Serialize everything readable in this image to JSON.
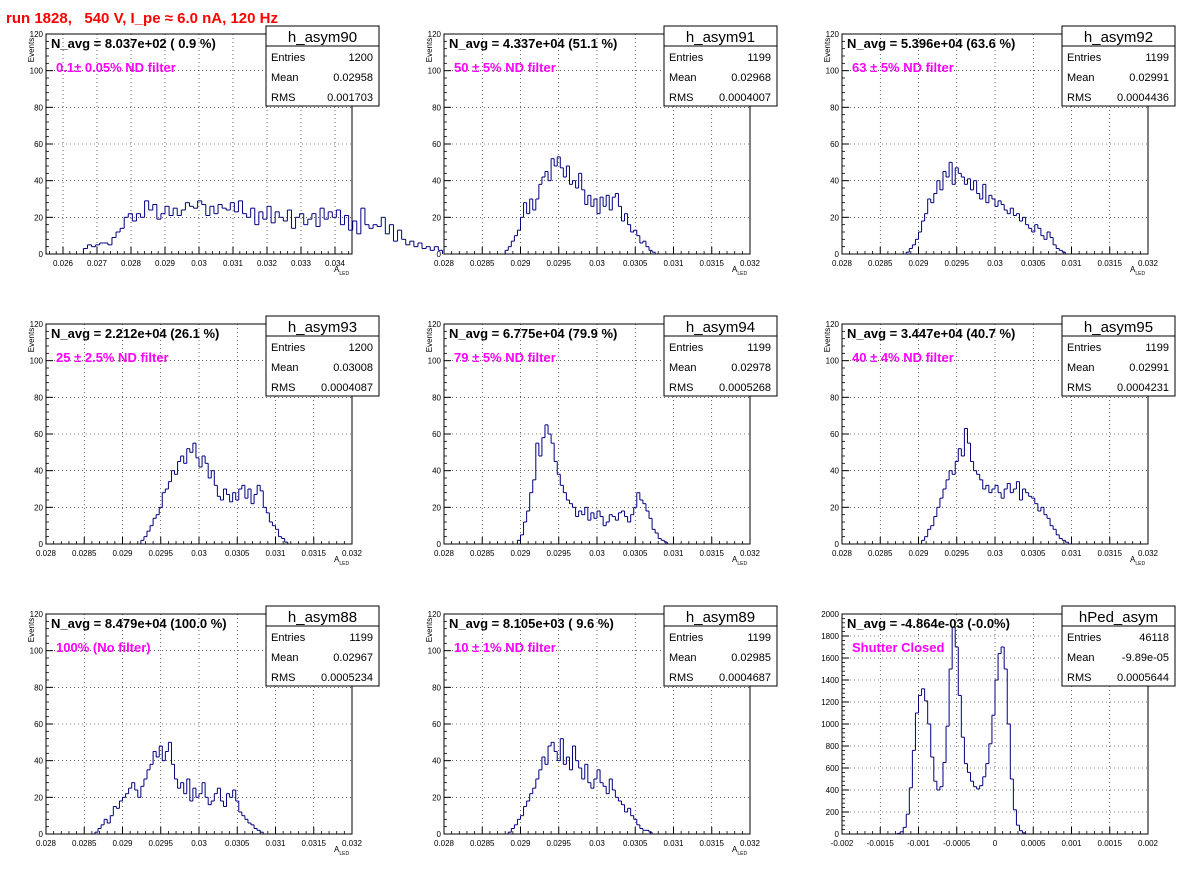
{
  "page_title": "run 1828,   540 V, I_pe ≈ 6.0 nA, 120 Hz",
  "colors": {
    "line": "#000080",
    "title_red": "#ff0000",
    "note_magenta": "#ff00ff",
    "grid": "#000000"
  },
  "chart_data": [
    {
      "type": "histogram",
      "name": "h_asym90",
      "header": "N_avg = 8.037e+02 ( 0.9 %)",
      "note": "0.1± 0.05% ND filter",
      "stats": {
        "entries": "1200",
        "mean": "0.02958",
        "rms": "0.001703"
      },
      "stat_labels": [
        "Entries",
        "Mean",
        "RMS"
      ],
      "xlabel": "A",
      "xlabel_sub": "LED",
      "ylabel": "Events",
      "xlim": [
        0.0255,
        0.0345
      ],
      "ylim": [
        0,
        120
      ],
      "xticks": [
        0.026,
        0.027,
        0.028,
        0.029,
        0.03,
        0.031,
        0.032,
        0.033,
        0.034
      ],
      "xtick_labels": [
        "0.026",
        "0.027",
        "0.028",
        "0.029",
        "0.03",
        "0.031",
        "0.032",
        "0.033",
        "0.034"
      ],
      "yticks": [
        0,
        20,
        40,
        60,
        80,
        100,
        120
      ],
      "ytick_labels": [
        "0",
        "20",
        "40",
        "60",
        "80",
        "100",
        "120"
      ],
      "bins": {
        "start": 0.0266,
        "width": 0.00012,
        "values": [
          3,
          5,
          4,
          5,
          6,
          6,
          5,
          9,
          12,
          14,
          20,
          22,
          18,
          22,
          20,
          29,
          24,
          27,
          19,
          22,
          26,
          21,
          25,
          21,
          24,
          28,
          26,
          25,
          29,
          27,
          21,
          26,
          22,
          27,
          25,
          24,
          28,
          23,
          29,
          22,
          20,
          25,
          16,
          23,
          19,
          26,
          17,
          23,
          20,
          18,
          24,
          14,
          20,
          22,
          16,
          19,
          22,
          15,
          25,
          19,
          23,
          20,
          24,
          16,
          21,
          13,
          18,
          11,
          25,
          16,
          14,
          16,
          15,
          20,
          11,
          16,
          7,
          13,
          8,
          5,
          7,
          4,
          6,
          3,
          4,
          2,
          4,
          2
        ]
      }
    },
    {
      "type": "histogram",
      "name": "h_asym91",
      "header": "N_avg = 4.337e+04 (51.1 %)",
      "note": "50 ± 5% ND filter",
      "stats": {
        "entries": "1199",
        "mean": "0.02968",
        "rms": "0.0004007"
      },
      "stat_labels": [
        "Entries",
        "Mean",
        "RMS"
      ],
      "xlabel": "A",
      "xlabel_sub": "LED",
      "ylabel": "Events",
      "xlim": [
        0.028,
        0.032
      ],
      "ylim": [
        0,
        120
      ],
      "xticks": [
        0.028,
        0.0285,
        0.029,
        0.0295,
        0.03,
        0.0305,
        0.031,
        0.0315,
        0.032
      ],
      "xtick_labels": [
        "0.028",
        "0.0285",
        "0.029",
        "0.0295",
        "0.03",
        "0.0305",
        "0.031",
        "0.0315",
        "0.032"
      ],
      "yticks": [
        0,
        20,
        40,
        60,
        80,
        100,
        120
      ],
      "ytick_labels": [
        "0",
        "20",
        "40",
        "60",
        "80",
        "100",
        "120"
      ],
      "bins": {
        "start": 0.0288,
        "width": 4e-05,
        "values": [
          2,
          4,
          7,
          10,
          13,
          20,
          28,
          22,
          30,
          24,
          30,
          38,
          42,
          45,
          40,
          52,
          48,
          53,
          47,
          42,
          48,
          38,
          40,
          36,
          44,
          35,
          27,
          32,
          26,
          30,
          22,
          31,
          26,
          32,
          24,
          31,
          33,
          26,
          18,
          22,
          16,
          12,
          13,
          10,
          6,
          7,
          4,
          2,
          1
        ]
      }
    },
    {
      "type": "histogram",
      "name": "h_asym92",
      "header": "N_avg = 5.396e+04 (63.6 %)",
      "note": "63 ± 5% ND filter",
      "stats": {
        "entries": "1199",
        "mean": "0.02991",
        "rms": "0.0004436"
      },
      "stat_labels": [
        "Entries",
        "Mean",
        "RMS"
      ],
      "xlabel": "A",
      "xlabel_sub": "LED",
      "ylabel": "Events",
      "xlim": [
        0.028,
        0.032
      ],
      "ylim": [
        0,
        120
      ],
      "xticks": [
        0.028,
        0.0285,
        0.029,
        0.0295,
        0.03,
        0.0305,
        0.031,
        0.0315,
        0.032
      ],
      "xtick_labels": [
        "0.028",
        "0.0285",
        "0.029",
        "0.0295",
        "0.03",
        "0.0305",
        "0.031",
        "0.0315",
        "0.032"
      ],
      "yticks": [
        0,
        20,
        40,
        60,
        80,
        100,
        120
      ],
      "ytick_labels": [
        "0",
        "20",
        "40",
        "60",
        "80",
        "100",
        "120"
      ],
      "bins": {
        "start": 0.02884,
        "width": 4e-05,
        "values": [
          1,
          3,
          5,
          8,
          12,
          18,
          22,
          30,
          28,
          33,
          40,
          35,
          45,
          42,
          50,
          38,
          47,
          44,
          42,
          38,
          41,
          35,
          40,
          33,
          30,
          38,
          28,
          32,
          30,
          26,
          29,
          27,
          24,
          22,
          25,
          21,
          22,
          18,
          20,
          16,
          14,
          12,
          16,
          14,
          10,
          8,
          12,
          9,
          5,
          3,
          2,
          1
        ]
      }
    },
    {
      "type": "histogram",
      "name": "h_asym93",
      "header": "N_avg = 2.212e+04 (26.1 %)",
      "note": "25 ± 2.5% ND filter",
      "stats": {
        "entries": "1200",
        "mean": "0.03008",
        "rms": "0.0004087"
      },
      "stat_labels": [
        "Entries",
        "Mean",
        "RMS"
      ],
      "xlabel": "A",
      "xlabel_sub": "LED",
      "ylabel": "Events",
      "xlim": [
        0.028,
        0.032
      ],
      "ylim": [
        0,
        120
      ],
      "xticks": [
        0.028,
        0.0285,
        0.029,
        0.0295,
        0.03,
        0.0305,
        0.031,
        0.0315,
        0.032
      ],
      "xtick_labels": [
        "0.028",
        "0.0285",
        "0.029",
        "0.0295",
        "0.03",
        "0.0305",
        "0.031",
        "0.0315",
        "0.032"
      ],
      "yticks": [
        0,
        20,
        40,
        60,
        80,
        100,
        120
      ],
      "ytick_labels": [
        "0",
        "20",
        "40",
        "60",
        "80",
        "100",
        "120"
      ],
      "bins": {
        "start": 0.02924,
        "width": 4e-05,
        "values": [
          2,
          4,
          7,
          10,
          14,
          16,
          20,
          28,
          30,
          34,
          40,
          38,
          45,
          48,
          44,
          52,
          50,
          55,
          47,
          42,
          48,
          44,
          36,
          40,
          32,
          26,
          24,
          30,
          27,
          23,
          28,
          24,
          30,
          32,
          25,
          30,
          22,
          27,
          32,
          29,
          20,
          17,
          12,
          10,
          8,
          4,
          3,
          1
        ]
      }
    },
    {
      "type": "histogram",
      "name": "h_asym94",
      "header": "N_avg = 6.775e+04 (79.9 %)",
      "note": "79 ± 5% ND filter",
      "stats": {
        "entries": "1199",
        "mean": "0.02978",
        "rms": "0.0005268"
      },
      "stat_labels": [
        "Entries",
        "Mean",
        "RMS"
      ],
      "xlabel": "A",
      "xlabel_sub": "LED",
      "ylabel": "Events",
      "xlim": [
        0.028,
        0.032
      ],
      "ylim": [
        0,
        120
      ],
      "xticks": [
        0.028,
        0.0285,
        0.029,
        0.0295,
        0.03,
        0.0305,
        0.031,
        0.0315,
        0.032
      ],
      "xtick_labels": [
        "0.028",
        "0.0285",
        "0.029",
        "0.0295",
        "0.03",
        "0.0305",
        "0.031",
        "0.0315",
        "0.032"
      ],
      "yticks": [
        0,
        20,
        40,
        60,
        80,
        100,
        120
      ],
      "ytick_labels": [
        "0",
        "20",
        "40",
        "60",
        "80",
        "100",
        "120"
      ],
      "bins": {
        "start": 0.02896,
        "width": 4e-05,
        "values": [
          2,
          5,
          12,
          18,
          28,
          35,
          55,
          48,
          58,
          65,
          60,
          55,
          45,
          38,
          32,
          28,
          24,
          22,
          20,
          15,
          18,
          16,
          20,
          13,
          17,
          14,
          18,
          15,
          10,
          12,
          16,
          15,
          13,
          17,
          18,
          15,
          12,
          16,
          20,
          28,
          24,
          22,
          18,
          14,
          8,
          6,
          3,
          2,
          1
        ]
      }
    },
    {
      "type": "histogram",
      "name": "h_asym95",
      "header": "N_avg = 3.447e+04 (40.7 %)",
      "note": "40 ± 4% ND filter",
      "stats": {
        "entries": "1199",
        "mean": "0.02991",
        "rms": "0.0004231"
      },
      "stat_labels": [
        "Entries",
        "Mean",
        "RMS"
      ],
      "xlabel": "A",
      "xlabel_sub": "LED",
      "ylabel": "Events",
      "xlim": [
        0.028,
        0.032
      ],
      "ylim": [
        0,
        120
      ],
      "xticks": [
        0.028,
        0.0285,
        0.029,
        0.0295,
        0.03,
        0.0305,
        0.031,
        0.0315,
        0.032
      ],
      "xtick_labels": [
        "0.028",
        "0.0285",
        "0.029",
        "0.0295",
        "0.03",
        "0.0305",
        "0.031",
        "0.0315",
        "0.032"
      ],
      "yticks": [
        0,
        20,
        40,
        60,
        80,
        100,
        120
      ],
      "ytick_labels": [
        "0",
        "20",
        "40",
        "60",
        "80",
        "100",
        "120"
      ],
      "bins": {
        "start": 0.02904,
        "width": 4e-05,
        "values": [
          2,
          4,
          8,
          10,
          15,
          20,
          25,
          30,
          35,
          40,
          38,
          45,
          52,
          48,
          63,
          55,
          45,
          40,
          38,
          35,
          30,
          32,
          28,
          30,
          32,
          28,
          25,
          30,
          33,
          28,
          30,
          34,
          24,
          30,
          28,
          26,
          25,
          22,
          18,
          20,
          16,
          14,
          10,
          8,
          5,
          3,
          2,
          1
        ]
      }
    },
    {
      "type": "histogram",
      "name": "h_asym88",
      "header": "N_avg = 8.479e+04 (100.0 %)",
      "note": "100% (No filter)",
      "stats": {
        "entries": "1199",
        "mean": "0.02967",
        "rms": "0.0005234"
      },
      "stat_labels": [
        "Entries",
        "Mean",
        "RMS"
      ],
      "xlabel": "A",
      "xlabel_sub": "LED",
      "ylabel": "Events",
      "xlim": [
        0.028,
        0.032
      ],
      "ylim": [
        0,
        120
      ],
      "xticks": [
        0.028,
        0.0285,
        0.029,
        0.0295,
        0.03,
        0.0305,
        0.031,
        0.0315,
        0.032
      ],
      "xtick_labels": [
        "0.028",
        "0.0285",
        "0.029",
        "0.0295",
        "0.03",
        "0.0305",
        "0.031",
        "0.0315",
        "0.032"
      ],
      "yticks": [
        0,
        20,
        40,
        60,
        80,
        100,
        120
      ],
      "ytick_labels": [
        "0",
        "20",
        "40",
        "60",
        "80",
        "100",
        "120"
      ],
      "bins": {
        "start": 0.02864,
        "width": 4e-05,
        "values": [
          1,
          3,
          5,
          8,
          6,
          10,
          15,
          14,
          18,
          20,
          22,
          25,
          28,
          24,
          20,
          26,
          30,
          35,
          38,
          45,
          42,
          48,
          40,
          45,
          50,
          38,
          30,
          25,
          28,
          22,
          30,
          18,
          25,
          20,
          22,
          28,
          20,
          16,
          18,
          22,
          25,
          18,
          15,
          22,
          20,
          24,
          18,
          12,
          10,
          8,
          6,
          5,
          3,
          2,
          1
        ]
      }
    },
    {
      "type": "histogram",
      "name": "h_asym89",
      "header": "N_avg = 8.105e+03 ( 9.6 %)",
      "note": "10 ± 1% ND filter",
      "stats": {
        "entries": "1199",
        "mean": "0.02985",
        "rms": "0.0004687"
      },
      "stat_labels": [
        "Entries",
        "Mean",
        "RMS"
      ],
      "xlabel": "A",
      "xlabel_sub": "LED",
      "ylabel": "Events",
      "xlim": [
        0.028,
        0.032
      ],
      "ylim": [
        0,
        120
      ],
      "xticks": [
        0.028,
        0.0285,
        0.029,
        0.0295,
        0.03,
        0.0305,
        0.031,
        0.0315,
        0.032
      ],
      "xtick_labels": [
        "0.028",
        "0.0285",
        "0.029",
        "0.0295",
        "0.03",
        "0.0305",
        "0.031",
        "0.0315",
        "0.032"
      ],
      "yticks": [
        0,
        20,
        40,
        60,
        80,
        100,
        120
      ],
      "ytick_labels": [
        "0",
        "20",
        "40",
        "60",
        "80",
        "100",
        "120"
      ],
      "bins": {
        "start": 0.02884,
        "width": 4e-05,
        "values": [
          1,
          3,
          5,
          8,
          10,
          15,
          18,
          22,
          25,
          30,
          35,
          42,
          38,
          48,
          50,
          45,
          40,
          52,
          38,
          42,
          35,
          48,
          40,
          36,
          30,
          38,
          28,
          25,
          30,
          35,
          28,
          26,
          22,
          30,
          24,
          20,
          18,
          16,
          12,
          14,
          10,
          8,
          5,
          3,
          2,
          2,
          1
        ]
      }
    },
    {
      "type": "histogram",
      "name": "hPed_asym",
      "header": "N_avg = -4.864e-03 (-0.0%)",
      "note": "Shutter Closed",
      "stats": {
        "entries": "46118",
        "mean": "-9.89e-05",
        "rms": "0.0005644"
      },
      "stat_labels": [
        "Entries",
        "Mean",
        "RMS"
      ],
      "xlabel": "",
      "xlabel_sub": "",
      "ylabel": "",
      "xlim": [
        -0.002,
        0.002
      ],
      "ylim": [
        0,
        2000
      ],
      "xticks": [
        -0.002,
        -0.0015,
        -0.001,
        -0.0005,
        0,
        0.0005,
        0.001,
        0.0015,
        0.002
      ],
      "xtick_labels": [
        "-0.002",
        "-0.0015",
        "-0.001",
        "-0.0005",
        "0",
        "0.0005",
        "0.001",
        "0.0015",
        "0.002"
      ],
      "yticks": [
        0,
        200,
        400,
        600,
        800,
        1000,
        1200,
        1400,
        1600,
        1800,
        2000
      ],
      "ytick_labels": [
        "0",
        "200",
        "400",
        "600",
        "800",
        "1000",
        "1200",
        "1400",
        "1600",
        "1800",
        "2000"
      ],
      "bins": {
        "start": -0.00128,
        "width": 4e-05,
        "values": [
          5,
          20,
          60,
          180,
          420,
          760,
          1100,
          1260,
          1320,
          1210,
          1000,
          700,
          480,
          400,
          430,
          650,
          980,
          1500,
          1880,
          1700,
          1260,
          880,
          640,
          560,
          480,
          430,
          410,
          440,
          520,
          640,
          820,
          1080,
          1400,
          1640,
          1700,
          1500,
          1000,
          500,
          220,
          80,
          30,
          10
        ]
      }
    }
  ]
}
